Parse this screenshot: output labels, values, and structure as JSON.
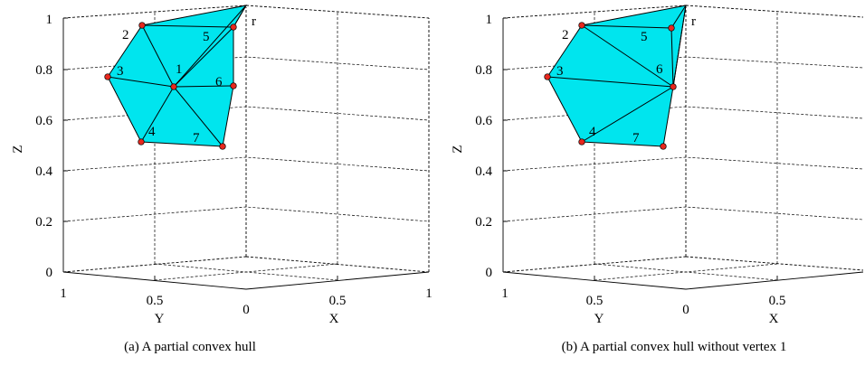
{
  "figure": {
    "panels": [
      {
        "caption": "(a)  A partial convex hull",
        "z_axis_label": "Z",
        "y_axis_label": "Y",
        "x_axis_label": "X",
        "z_ticks": [
          "0",
          "0.2",
          "0.4",
          "0.6",
          "0.8",
          "1"
        ],
        "y_ticks": [
          "1",
          "0.5",
          "0"
        ],
        "x_ticks": [
          "0.5",
          "1"
        ],
        "vertex_labels": [
          "1",
          "2",
          "3",
          "4",
          "5",
          "6",
          "7",
          "r"
        ],
        "colors": {
          "face": "#00e5ee",
          "vertex": "#e8281e",
          "edge": "#000000",
          "grid": "#000000"
        }
      },
      {
        "caption": "(b)  A partial convex hull without vertex 1",
        "z_axis_label": "Z",
        "y_axis_label": "Y",
        "x_axis_label": "X",
        "z_ticks": [
          "0",
          "0.2",
          "0.4",
          "0.6",
          "0.8",
          "1"
        ],
        "y_ticks": [
          "1",
          "0.5",
          "0"
        ],
        "x_ticks": [
          "0.5"
        ],
        "vertex_labels": [
          "2",
          "3",
          "4",
          "5",
          "6",
          "7",
          "r"
        ],
        "colors": {
          "face": "#00e5ee",
          "vertex": "#e8281e",
          "edge": "#000000",
          "grid": "#000000"
        }
      }
    ]
  }
}
